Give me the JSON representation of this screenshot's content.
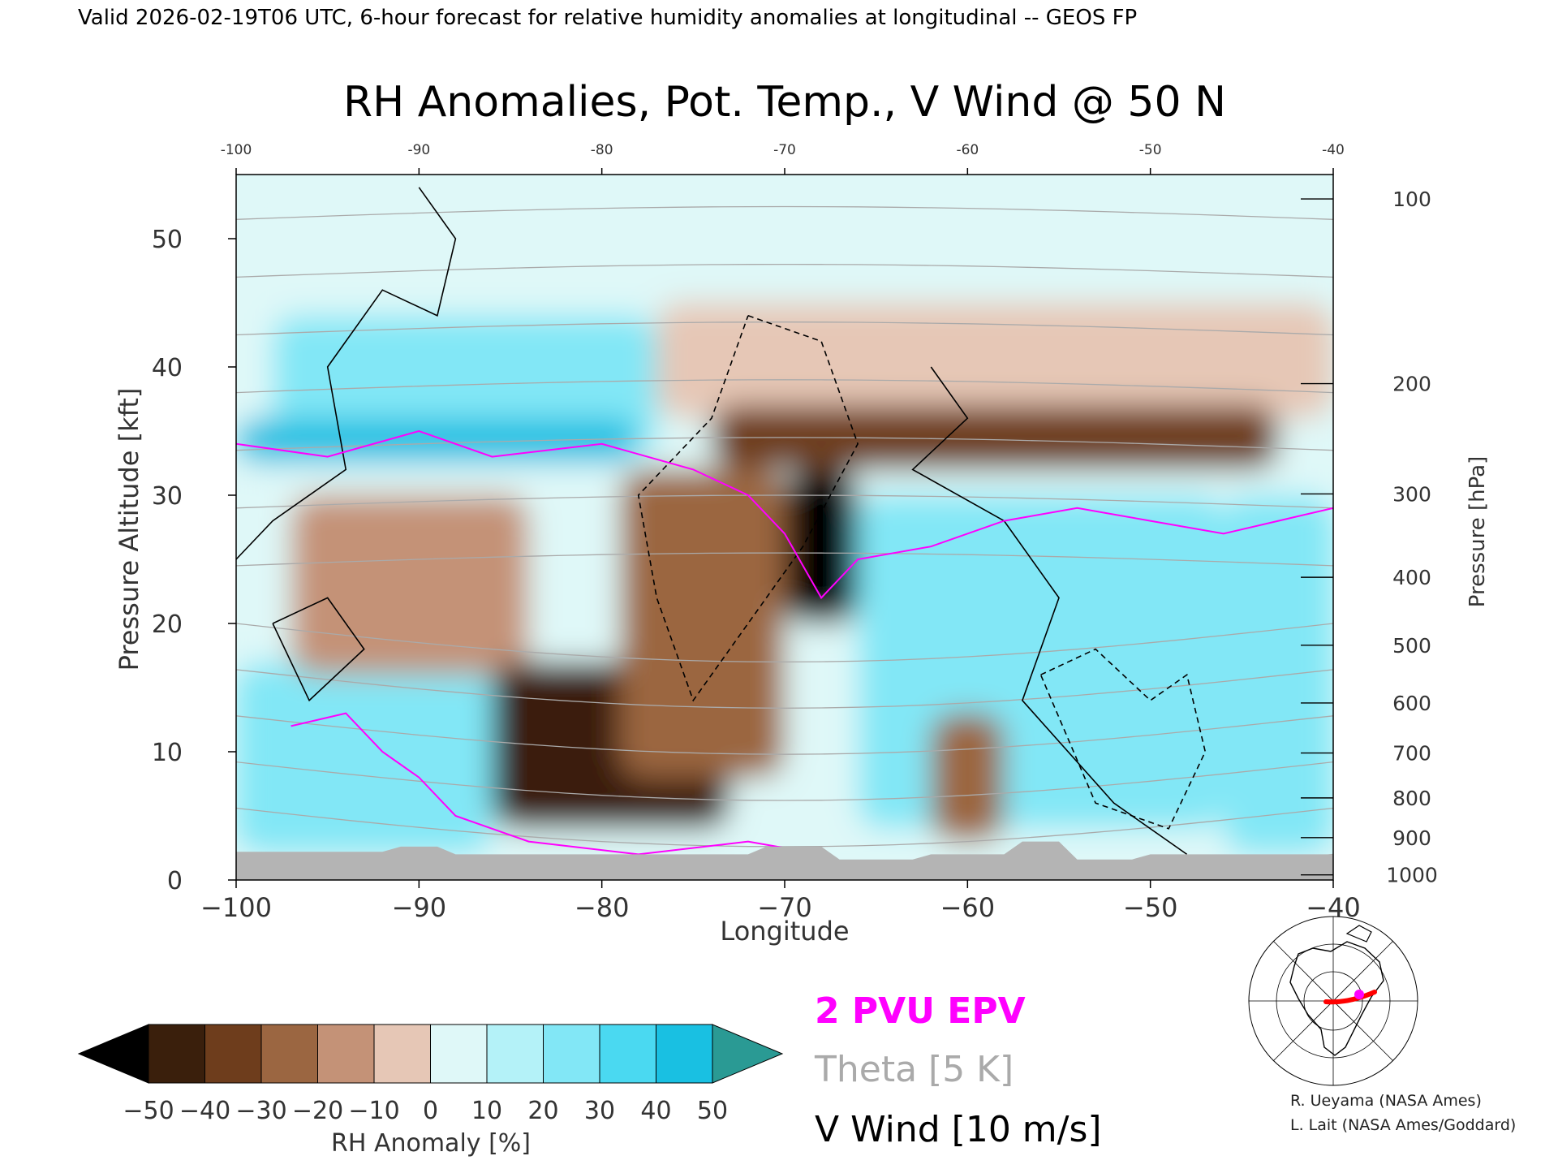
{
  "header": "Valid 2026-02-19T06 UTC, 6-hour forecast for relative humidity anomalies at longitudinal -- GEOS FP",
  "chart_data": {
    "type": "heatmap",
    "title": "RH Anomalies, Pot. Temp., V Wind @ 50 N",
    "xlabel": "Longitude",
    "ylabel_left": "Pressure Altitude [kft]",
    "ylabel_right": "Pressure [hPa]",
    "xlim": [
      -100,
      -40
    ],
    "ylim": [
      0,
      55
    ],
    "x_ticks": [
      -100,
      -90,
      -80,
      -70,
      -60,
      -50,
      -40
    ],
    "x_tick_labels": [
      "−100",
      "−90",
      "−80",
      "−70",
      "−60",
      "−50",
      "−40"
    ],
    "x_tick_labels_top": [
      "-100",
      "-90",
      "-80",
      "-70",
      "-60",
      "-50",
      "-40"
    ],
    "y_ticks": [
      0,
      10,
      20,
      30,
      40,
      50
    ],
    "y_tick_labels": [
      "0",
      "10",
      "20",
      "30",
      "40",
      "50"
    ],
    "pressure_ticks": [
      {
        "kft": 0.4,
        "label": "1000"
      },
      {
        "kft": 3.3,
        "label": "900"
      },
      {
        "kft": 6.4,
        "label": "800"
      },
      {
        "kft": 9.9,
        "label": "700"
      },
      {
        "kft": 13.8,
        "label": "600"
      },
      {
        "kft": 18.3,
        "label": "500"
      },
      {
        "kft": 23.6,
        "label": "400"
      },
      {
        "kft": 30.1,
        "label": "300"
      },
      {
        "kft": 38.7,
        "label": "200"
      },
      {
        "kft": 53.1,
        "label": "100"
      }
    ],
    "colorbar": {
      "label": "RH Anomaly [%]",
      "levels": [
        -50,
        -40,
        -30,
        -20,
        -10,
        0,
        10,
        20,
        30,
        40,
        50
      ],
      "tick_labels": [
        "−50",
        "−40",
        "−30",
        "−20",
        "−10",
        "0",
        "10",
        "20",
        "30",
        "40",
        "50"
      ],
      "colors": [
        "#000000",
        "#3a1f0c",
        "#6e3d1c",
        "#9b6641",
        "#c49277",
        "#e6c7b6",
        "#dff8f8",
        "#b4f2f8",
        "#82e7f6",
        "#4ad9f1",
        "#19c0e2",
        "#0894b8",
        "#2a9a94"
      ]
    },
    "theta_levels_K": [
      280,
      290,
      300,
      310,
      320,
      330,
      340,
      350,
      360,
      370,
      380,
      390,
      400,
      410,
      420
    ],
    "wind_contours_m_s": [
      -10,
      0,
      10
    ],
    "regions": [
      {
        "x": [
          -100,
          -40
        ],
        "y": [
          0,
          55
        ],
        "value": 0
      },
      {
        "x": [
          -100,
          -40
        ],
        "y": [
          36,
          55
        ],
        "value": 3
      },
      {
        "x": [
          -77,
          -40
        ],
        "y": [
          36,
          45
        ],
        "value": -10
      },
      {
        "x": [
          -98,
          -77
        ],
        "y": [
          33,
          44
        ],
        "value": 25
      },
      {
        "x": [
          -100,
          -78
        ],
        "y": [
          32.5,
          36
        ],
        "value": 48
      },
      {
        "x": [
          -74,
          -43
        ],
        "y": [
          32,
          37
        ],
        "value": -35
      },
      {
        "x": [
          -100,
          -86
        ],
        "y": [
          2,
          17
        ],
        "value": 25
      },
      {
        "x": [
          -97,
          -84
        ],
        "y": [
          16,
          30
        ],
        "value": -20
      },
      {
        "x": [
          -86,
          -73
        ],
        "y": [
          4,
          17
        ],
        "value": -50
      },
      {
        "x": [
          -79,
          -70
        ],
        "y": [
          8,
          32
        ],
        "value": -28
      },
      {
        "x": [
          -70,
          -66
        ],
        "y": [
          20,
          32
        ],
        "value": -55
      },
      {
        "x": [
          -66,
          -46
        ],
        "y": [
          4,
          30
        ],
        "value": 28
      },
      {
        "x": [
          -62,
          -58
        ],
        "y": [
          3,
          13
        ],
        "value": -25
      },
      {
        "x": [
          -46,
          -40
        ],
        "y": [
          2,
          30
        ],
        "value": 22
      }
    ],
    "wind_0_contour": [
      [
        -90,
        54
      ],
      [
        -88,
        50
      ],
      [
        -89,
        44
      ],
      [
        -92,
        46
      ],
      [
        -95,
        40
      ],
      [
        -94,
        32
      ],
      [
        -98,
        28
      ],
      [
        -100,
        25
      ]
    ],
    "wind_0_contour_2": [
      [
        -62,
        40
      ],
      [
        -60,
        36
      ],
      [
        -63,
        32
      ],
      [
        -58,
        28
      ],
      [
        -55,
        22
      ],
      [
        -57,
        14
      ],
      [
        -52,
        6
      ],
      [
        -48,
        2
      ]
    ],
    "wind_neg10_contour": [
      [
        -72,
        44
      ],
      [
        -68,
        42
      ],
      [
        -66,
        34
      ],
      [
        -69,
        26
      ],
      [
        -72,
        20
      ],
      [
        -75,
        14
      ],
      [
        -77,
        22
      ],
      [
        -78,
        30
      ],
      [
        -74,
        36
      ],
      [
        -72,
        44
      ]
    ],
    "wind_neg10_contour_2": [
      [
        -56,
        16
      ],
      [
        -53,
        18
      ],
      [
        -50,
        14
      ],
      [
        -48,
        16
      ],
      [
        -47,
        10
      ],
      [
        -49,
        4
      ],
      [
        -53,
        6
      ],
      [
        -56,
        16
      ]
    ],
    "wind_10_contour": [
      [
        -98,
        20
      ],
      [
        -95,
        22
      ],
      [
        -93,
        18
      ],
      [
        -96,
        14
      ],
      [
        -98,
        20
      ]
    ],
    "epv_2pvu": [
      [
        -100,
        34
      ],
      [
        -95,
        33
      ],
      [
        -90,
        35
      ],
      [
        -86,
        33
      ],
      [
        -80,
        34
      ],
      [
        -75,
        32
      ],
      [
        -72,
        30
      ],
      [
        -70,
        27
      ],
      [
        -68,
        22
      ],
      [
        -66,
        25
      ],
      [
        -62,
        26
      ],
      [
        -58,
        28
      ],
      [
        -54,
        29
      ],
      [
        -50,
        28
      ],
      [
        -46,
        27
      ],
      [
        -43,
        28
      ],
      [
        -40,
        29
      ]
    ],
    "epv_2pvu_low": [
      [
        -97,
        12
      ],
      [
        -94,
        13
      ],
      [
        -92,
        10
      ],
      [
        -90,
        8
      ],
      [
        -88,
        5
      ],
      [
        -84,
        3
      ],
      [
        -78,
        2
      ],
      [
        -72,
        3
      ],
      [
        -68,
        2
      ]
    ],
    "surface": [
      [
        -100,
        2.2
      ],
      [
        -92,
        2.2
      ],
      [
        -91,
        2.6
      ],
      [
        -89,
        2.6
      ],
      [
        -88,
        2.0
      ],
      [
        -72,
        2.0
      ],
      [
        -71,
        2.6
      ],
      [
        -68,
        2.6
      ],
      [
        -67,
        1.6
      ],
      [
        -63,
        1.6
      ],
      [
        -62,
        2.0
      ],
      [
        -58,
        2.0
      ],
      [
        -57,
        3.0
      ],
      [
        -55,
        3.0
      ],
      [
        -54,
        1.6
      ],
      [
        -51,
        1.6
      ],
      [
        -50,
        2.0
      ],
      [
        -40,
        2.0
      ]
    ]
  },
  "legend": {
    "epv": "2 PVU EPV",
    "theta": "Theta [5 K]",
    "vwind": "V Wind [10 m/s]",
    "epv_color": "#ff00ff",
    "theta_color": "#aaaaaa"
  },
  "credits": {
    "line1": "R. Ueyama (NASA Ames)",
    "line2": "L. Lait (NASA Ames/Goddard)"
  },
  "locator_map": {
    "track_color": "#ff0000",
    "marker_color": "#ff00ff"
  }
}
